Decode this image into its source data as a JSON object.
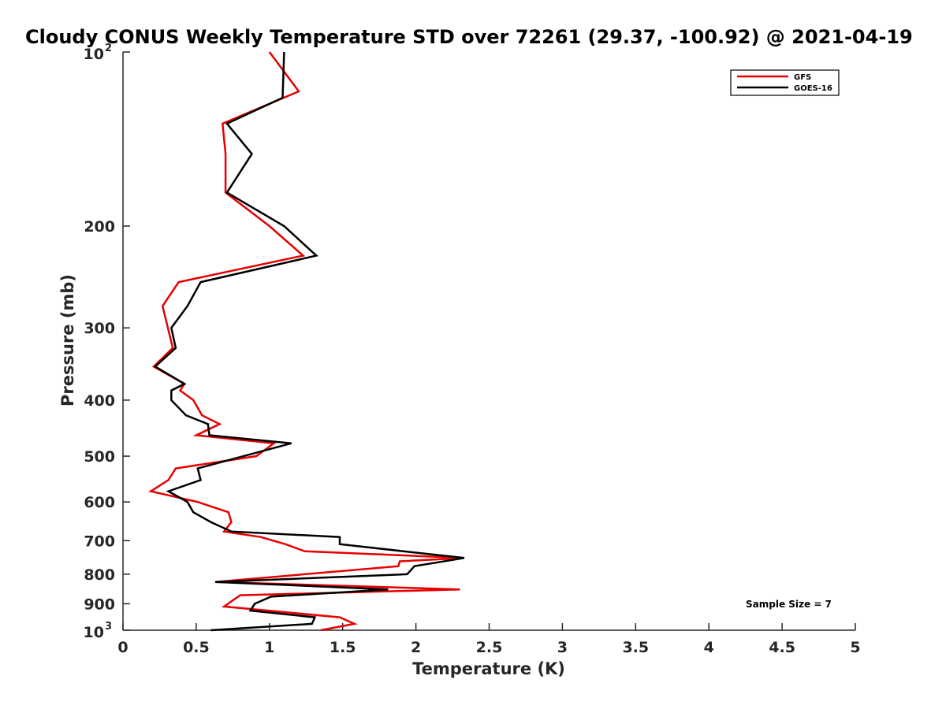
{
  "chart_data": {
    "type": "line",
    "title": "Cloudy CONUS Weekly Temperature STD over 72261 (29.37, -100.92) @ 2021-04-19",
    "xlabel": "Temperature (K)",
    "ylabel": "Pressure (mb)",
    "xlim": [
      0,
      5
    ],
    "ylim": [
      100,
      1000
    ],
    "y_scale": "log",
    "y_reversed": true,
    "grid": false,
    "legend_position": "top-right",
    "x_ticks": [
      "0",
      "0.5",
      "1",
      "1.5",
      "2",
      "2.5",
      "3",
      "3.5",
      "4",
      "4.5",
      "5"
    ],
    "y_ticks": [
      {
        "value": 100,
        "base": "10",
        "exp": "2"
      },
      {
        "value": 200,
        "label": "200"
      },
      {
        "value": 300,
        "label": "300"
      },
      {
        "value": 400,
        "label": "400"
      },
      {
        "value": 500,
        "label": "500"
      },
      {
        "value": 600,
        "label": "600"
      },
      {
        "value": 700,
        "label": "700"
      },
      {
        "value": 800,
        "label": "800"
      },
      {
        "value": 900,
        "label": "900"
      },
      {
        "value": 1000,
        "base": "10",
        "exp": "3"
      }
    ],
    "annotation": "Sample Size = 7",
    "series": [
      {
        "name": "GFS",
        "color": "#e60000",
        "points": [
          [
            1.0,
            100
          ],
          [
            1.2,
            117
          ],
          [
            0.68,
            133
          ],
          [
            0.7,
            150
          ],
          [
            0.7,
            175
          ],
          [
            1.0,
            200
          ],
          [
            1.23,
            225
          ],
          [
            0.38,
            250
          ],
          [
            0.27,
            275
          ],
          [
            0.34,
            325
          ],
          [
            0.21,
            350
          ],
          [
            0.42,
            375
          ],
          [
            0.39,
            385
          ],
          [
            0.48,
            400
          ],
          [
            0.54,
            425
          ],
          [
            0.66,
            440
          ],
          [
            0.5,
            460
          ],
          [
            1.03,
            475
          ],
          [
            0.91,
            500
          ],
          [
            0.36,
            525
          ],
          [
            0.31,
            550
          ],
          [
            0.19,
            575
          ],
          [
            0.51,
            600
          ],
          [
            0.72,
            625
          ],
          [
            0.74,
            650
          ],
          [
            0.69,
            675
          ],
          [
            0.94,
            690
          ],
          [
            1.11,
            710
          ],
          [
            1.24,
            730
          ],
          [
            2.33,
            750
          ],
          [
            1.89,
            760
          ],
          [
            1.88,
            775
          ],
          [
            0.63,
            825
          ],
          [
            2.3,
            850
          ],
          [
            0.8,
            870
          ],
          [
            0.69,
            910
          ],
          [
            1.48,
            950
          ],
          [
            1.58,
            975
          ],
          [
            1.35,
            1000
          ]
        ]
      },
      {
        "name": "GOES-16",
        "color": "#000000",
        "points": [
          [
            1.1,
            100
          ],
          [
            1.09,
            120
          ],
          [
            0.71,
            133
          ],
          [
            0.88,
            150
          ],
          [
            0.71,
            175
          ],
          [
            1.1,
            200
          ],
          [
            1.32,
            225
          ],
          [
            0.53,
            250
          ],
          [
            0.44,
            275
          ],
          [
            0.33,
            300
          ],
          [
            0.36,
            325
          ],
          [
            0.22,
            350
          ],
          [
            0.42,
            375
          ],
          [
            0.33,
            385
          ],
          [
            0.33,
            400
          ],
          [
            0.43,
            425
          ],
          [
            0.58,
            440
          ],
          [
            0.59,
            460
          ],
          [
            1.15,
            475
          ],
          [
            0.51,
            525
          ],
          [
            0.53,
            550
          ],
          [
            0.31,
            575
          ],
          [
            0.44,
            600
          ],
          [
            0.48,
            625
          ],
          [
            0.6,
            650
          ],
          [
            0.74,
            675
          ],
          [
            1.48,
            690
          ],
          [
            1.48,
            710
          ],
          [
            2.33,
            750
          ],
          [
            1.99,
            775
          ],
          [
            1.94,
            800
          ],
          [
            0.63,
            825
          ],
          [
            1.81,
            850
          ],
          [
            1.01,
            875
          ],
          [
            0.9,
            900
          ],
          [
            0.87,
            925
          ],
          [
            1.31,
            950
          ],
          [
            1.29,
            975
          ],
          [
            0.6,
            1000
          ]
        ]
      }
    ]
  }
}
